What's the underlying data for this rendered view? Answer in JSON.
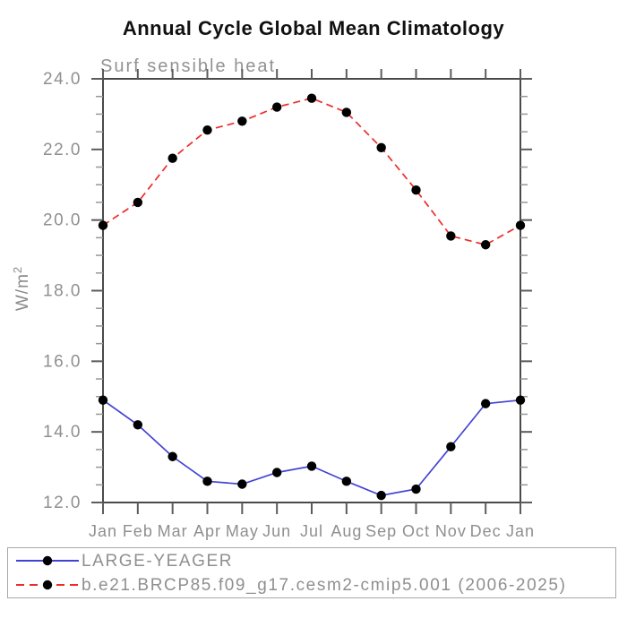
{
  "title": "Annual Cycle Global Mean Climatology",
  "subtitle": "Surf sensible heat",
  "ylabel": {
    "base": "W/m",
    "sup": "2"
  },
  "chart_data": {
    "type": "line",
    "title": "Annual Cycle Global Mean Climatology",
    "subtitle": "Surf sensible heat",
    "ylabel": "W/m^2",
    "xlabel": "",
    "x_tick_labels": [
      "Jan",
      "Feb",
      "Mar",
      "Apr",
      "May",
      "Jun",
      "Jul",
      "Aug",
      "Sep",
      "Oct",
      "Nov",
      "Dec",
      "Jan"
    ],
    "ylim": [
      12.0,
      24.0
    ],
    "y_tick_labels": [
      "12.0",
      "14.0",
      "16.0",
      "18.0",
      "20.0",
      "22.0",
      "24.0"
    ],
    "y_major_step": 2.0,
    "y_minor_step": 0.5,
    "grid": "off",
    "legend_position": "bottom",
    "series": [
      {
        "name": "LARGE-YEAGER",
        "color": "#4343d3",
        "style": "solid",
        "marker": "circle",
        "marker_color": "#000000",
        "values": [
          14.9,
          14.2,
          13.3,
          12.6,
          12.52,
          12.85,
          13.03,
          12.6,
          12.2,
          12.38,
          13.58,
          14.8,
          14.9
        ]
      },
      {
        "name": "b.e21.BRCP85.f09_g17.cesm2-cmip5.001 (2006-2025)",
        "color": "#ee2b2b",
        "style": "dashed",
        "marker": "circle",
        "marker_color": "#000000",
        "values": [
          19.85,
          20.5,
          21.75,
          22.55,
          22.8,
          23.2,
          23.45,
          23.05,
          22.05,
          20.85,
          19.55,
          19.3,
          19.85
        ]
      }
    ],
    "colors": {
      "axis": "#4a4a4a",
      "major_tick": "#5c5c5c",
      "minor_tick": "#979797",
      "text_gray": "#8f8f8f",
      "title_black": "#111111"
    }
  }
}
